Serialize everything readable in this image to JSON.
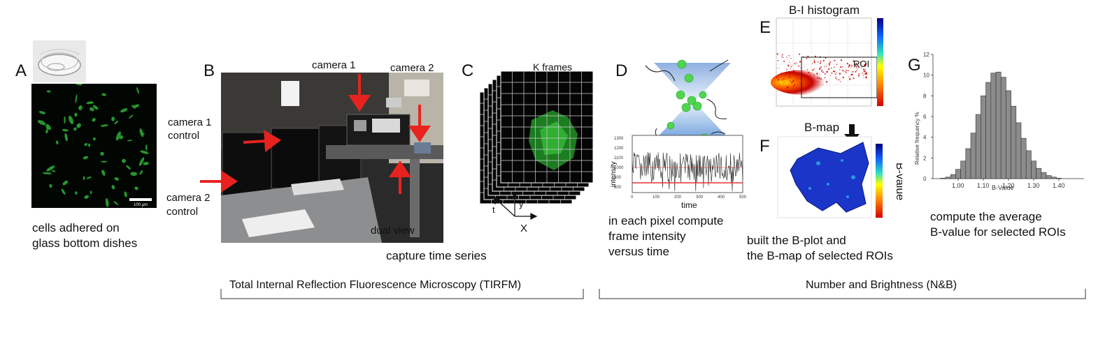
{
  "panels": {
    "A": {
      "letter": "A",
      "scale_bar": "100 µm",
      "caption_line1": "cells adhered on",
      "caption_line2": "glass bottom dishes"
    },
    "B": {
      "letter": "B",
      "camera1": "camera 1",
      "camera2": "camera 2",
      "cam1_control_line1": "camera 1",
      "cam1_control_line2": "control",
      "cam2_control_line1": "camera 2",
      "cam2_control_line2": "control",
      "dual_view": "dual view"
    },
    "C": {
      "letter": "C",
      "k_frames": "K frames",
      "axis_t": "t",
      "axis_y": "y",
      "axis_x": "X",
      "caption": "capture  time series"
    },
    "D": {
      "letter": "D",
      "ylabel": "intensity",
      "xlabel": "time",
      "yticks": [
        "1300",
        "1200",
        "1100",
        "1000",
        "900",
        "800"
      ],
      "xticks": [
        "0",
        "100",
        "200",
        "300",
        "400",
        "500"
      ],
      "caption_line1": "in each pixel compute",
      "caption_line2": "frame intensity",
      "caption_line3": "versus time"
    },
    "E": {
      "letter": "E",
      "title": "B-I histogram",
      "roi": "ROI"
    },
    "F": {
      "letter": "F",
      "title": "B-map",
      "bvalue": "B-value",
      "caption_line1": "built the B-plot and",
      "caption_line2": "the B-map of selected ROIs"
    },
    "G": {
      "letter": "G",
      "ylabel": "Relative frequency %",
      "xlabel": "B-Value",
      "yticks": [
        "0",
        "2",
        "4",
        "6",
        "8",
        "10",
        "12"
      ],
      "xticks": [
        "1.00",
        "1.10",
        "1.20",
        "1.30",
        "1.40"
      ],
      "caption_line1": "compute the average",
      "caption_line2": "B-value for selected ROIs"
    }
  },
  "brackets": {
    "tirfm": "Total Internal Reflection Fluorescence Microscopy (TIRFM)",
    "nb": "Number and Brightness (N&B)"
  },
  "colors": {
    "arrow_red": "#e8231f",
    "cell_green": "#3dbb3a",
    "trace_red": "#e53030",
    "bar_gray": "#8c8c8c"
  },
  "chart_data": {
    "type": "bar",
    "x": [
      0.94,
      0.96,
      0.98,
      1.0,
      1.02,
      1.04,
      1.06,
      1.08,
      1.1,
      1.12,
      1.14,
      1.16,
      1.18,
      1.2,
      1.22,
      1.24,
      1.26,
      1.28,
      1.3,
      1.32,
      1.34,
      1.36,
      1.38,
      1.4
    ],
    "values": [
      0.05,
      0.15,
      0.4,
      0.9,
      1.7,
      2.9,
      4.4,
      6.2,
      8.0,
      9.3,
      10.2,
      10.3,
      9.8,
      8.5,
      7.0,
      5.4,
      3.9,
      2.7,
      1.7,
      1.0,
      0.6,
      0.3,
      0.15,
      0.05
    ],
    "xlabel": "B-Value",
    "ylabel": "Relative frequency %",
    "xlim": [
      0.9,
      1.5
    ],
    "ylim": [
      0,
      12
    ]
  }
}
